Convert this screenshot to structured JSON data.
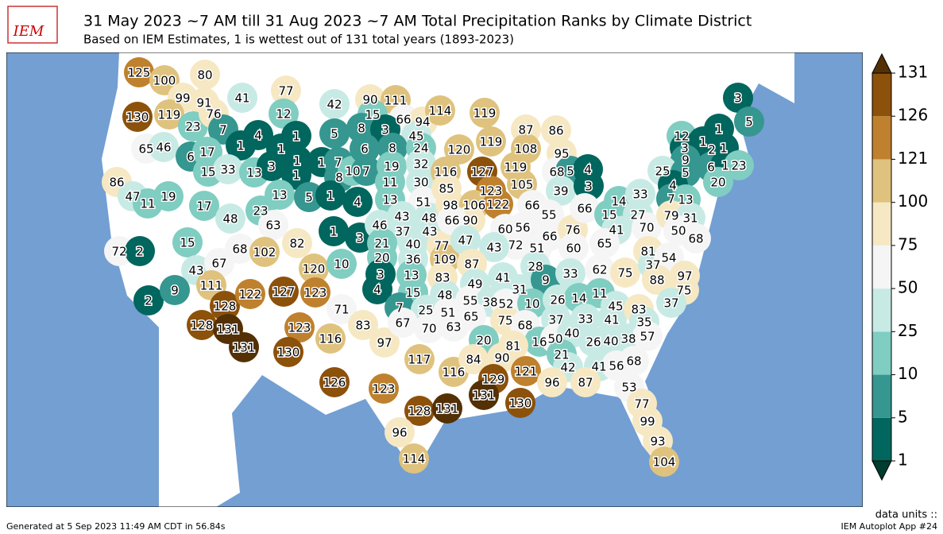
{
  "header": {
    "logo": "IEM",
    "title": "31 May 2023 ~7 AM till 31 Aug 2023 ~7 AM Total Precipitation Ranks by Climate District",
    "subtitle": "Based on IEM Estimates, 1 is wettest out of 131 total years (1893-2023)"
  },
  "map": {
    "district_ranks": [
      125,
      100,
      80,
      99,
      91,
      130,
      119,
      23,
      76,
      41,
      77,
      42,
      12,
      65,
      46,
      7,
      1,
      4,
      1,
      5,
      6,
      17,
      15,
      33,
      13,
      3,
      1,
      1,
      1,
      1,
      7,
      8,
      10,
      7,
      86,
      47,
      11,
      19,
      17,
      13,
      5,
      1,
      4,
      48,
      23,
      63,
      72,
      2,
      15,
      68,
      102,
      82,
      1,
      3,
      120,
      10,
      43,
      67,
      111,
      2,
      9,
      128,
      122,
      127,
      123,
      71,
      128,
      131,
      131,
      123,
      116,
      130,
      83,
      97,
      90,
      111,
      15,
      66,
      94,
      8,
      3,
      45,
      6,
      8,
      24,
      19,
      32,
      11,
      30,
      13,
      51,
      46,
      43,
      48,
      37,
      43,
      21,
      40,
      77,
      20,
      36,
      109,
      3,
      13,
      83,
      4,
      15,
      48,
      7,
      25,
      51,
      67,
      70,
      63,
      117,
      116,
      126,
      123,
      128,
      131,
      96,
      114,
      114,
      119,
      120,
      116,
      127,
      85,
      123,
      98,
      106,
      90,
      66,
      122,
      87,
      86,
      119,
      108,
      119,
      105,
      66,
      95,
      68,
      5,
      4,
      39,
      3,
      47,
      60,
      56,
      72,
      51,
      66,
      55,
      76,
      60,
      66,
      15,
      41,
      65,
      14,
      33,
      27,
      70,
      43,
      87,
      28,
      41,
      49,
      31,
      9,
      33,
      62,
      75,
      55,
      38,
      52,
      10,
      26,
      14,
      11,
      65,
      75,
      68,
      37,
      33,
      45,
      41,
      83,
      35,
      20,
      16,
      50,
      40,
      26,
      40,
      38,
      57,
      81,
      84,
      90,
      21,
      41,
      56,
      68,
      42,
      129,
      121,
      131,
      130,
      96,
      87,
      53,
      77,
      99,
      93,
      104,
      3,
      5,
      12,
      1,
      1,
      3,
      2,
      1,
      9,
      25,
      5,
      6,
      1,
      23,
      4,
      20,
      7,
      13,
      79,
      31,
      50,
      68,
      81,
      37,
      54,
      88,
      97,
      75,
      37
    ]
  },
  "colorbar": {
    "ticks": [
      1,
      5,
      10,
      25,
      50,
      75,
      100,
      121,
      126,
      131
    ],
    "colors": [
      "#01665e",
      "#35978f",
      "#80cdc1",
      "#c7eae5",
      "#f5f5f5",
      "#f6e8c3",
      "#dfc27d",
      "#bf812d",
      "#8c510a"
    ],
    "under_color": "#003c30",
    "over_color": "#543005"
  },
  "footer": {
    "units": "data units ::",
    "generated": "Generated at 5 Sep 2023 11:49 AM CDT in 56.84s",
    "app": "IEM Autoplot App #24"
  }
}
